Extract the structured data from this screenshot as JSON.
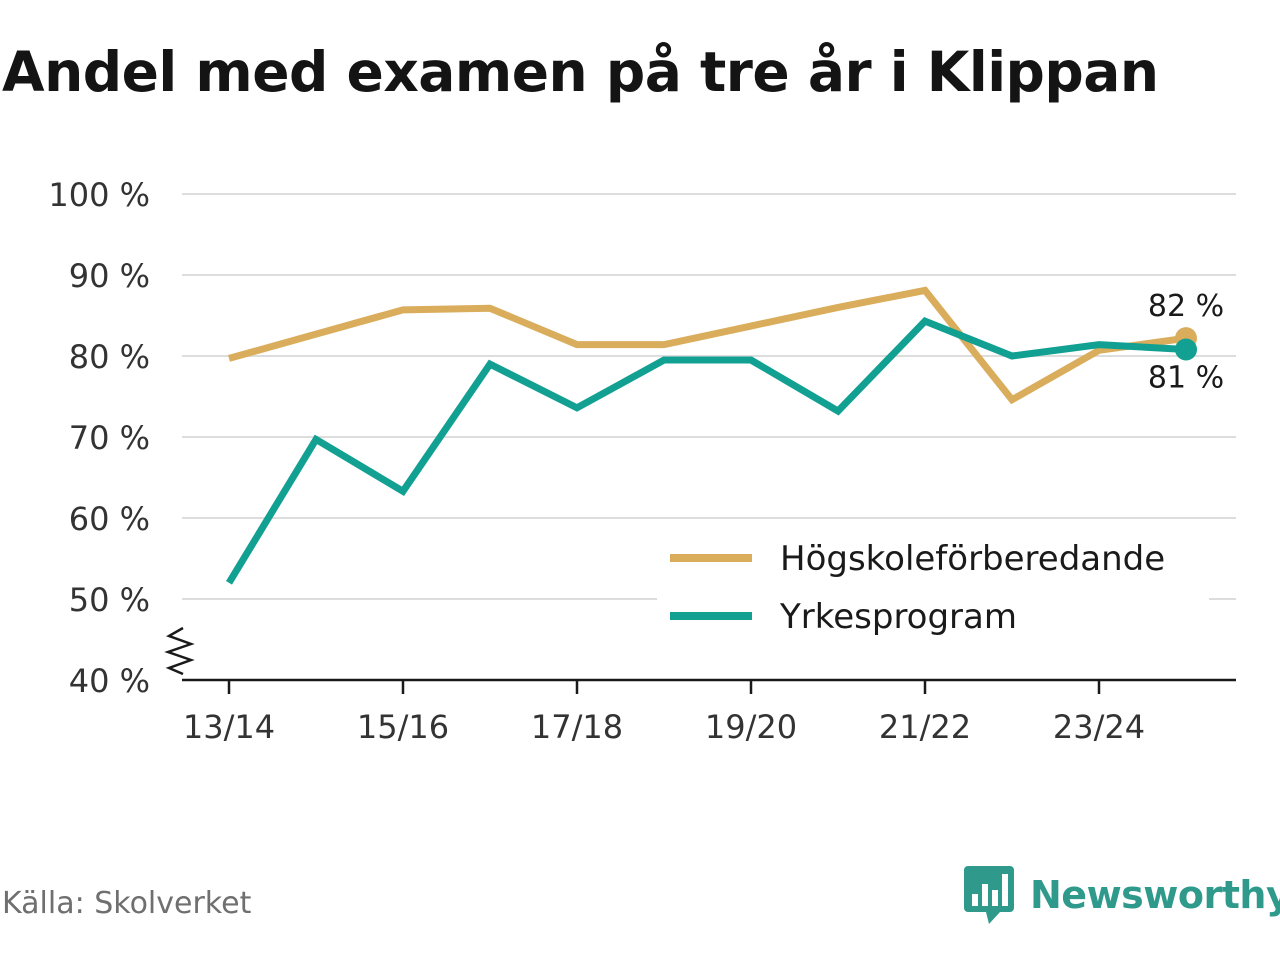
{
  "title": "Andel med examen på tre år i Klippan",
  "source": "Källa: Skolverket",
  "brand": {
    "name": "Newsworthy",
    "icon": "bar-chart-speech-bubble-icon",
    "color": "#2f9a8c"
  },
  "chart_data": {
    "type": "line",
    "title": "Andel med examen på tre år i Klippan",
    "xlabel": "",
    "ylabel": "",
    "x": [
      "13/14",
      "14/15",
      "15/16",
      "16/17",
      "17/18",
      "18/19",
      "19/20",
      "20/21",
      "21/22",
      "22/23",
      "23/24",
      "24/25"
    ],
    "xticks": [
      "13/14",
      "15/16",
      "17/18",
      "19/20",
      "21/22",
      "23/24"
    ],
    "ylim": [
      40,
      100
    ],
    "yticks": [
      40,
      50,
      60,
      70,
      80,
      90,
      100
    ],
    "ytick_suffix": " %",
    "grid": "horizontal",
    "axis_break": true,
    "legend_placement": "bottom-right",
    "series": [
      {
        "name": "Högskoleförberedande",
        "color": "#d9ad5b",
        "values": [
          79.7,
          82.7,
          85.7,
          85.9,
          81.4,
          81.4,
          83.7,
          86.0,
          88.1,
          74.6,
          80.7,
          82.2
        ],
        "end_label": "82 %"
      },
      {
        "name": "Yrkesprogram",
        "color": "#11a092",
        "values": [
          52.0,
          69.7,
          63.3,
          79.0,
          73.6,
          79.5,
          79.5,
          73.2,
          84.3,
          80.0,
          81.4,
          80.8
        ],
        "end_label": "81 %"
      }
    ]
  }
}
